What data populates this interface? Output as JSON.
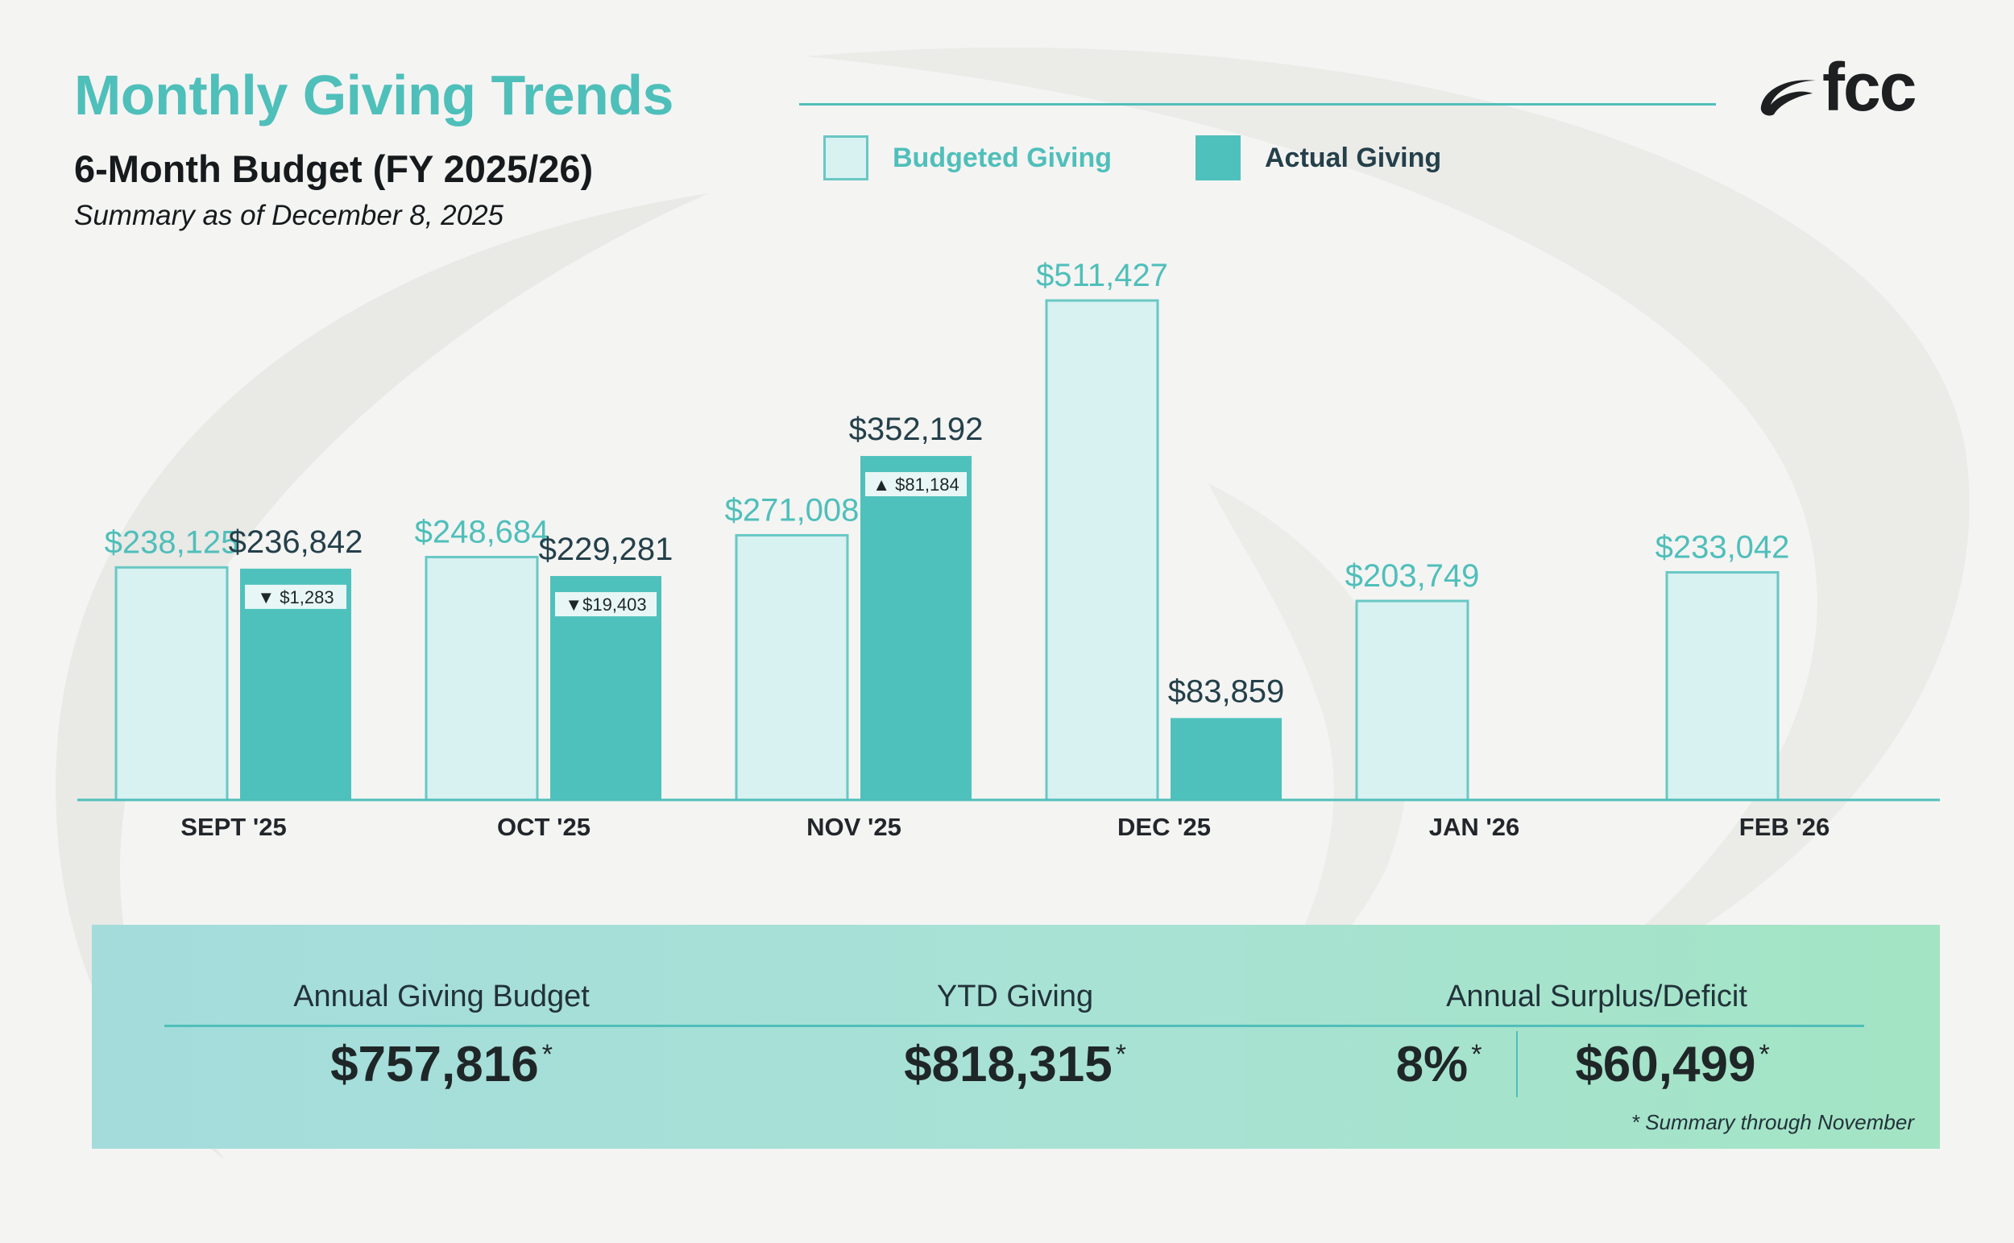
{
  "header": {
    "title": "Monthly Giving Trends",
    "subtitle": "6-Month Budget (FY 2025/26)",
    "as_of": "Summary as of December 8, 2025"
  },
  "logo": {
    "text": "fcc"
  },
  "legend": {
    "budget_label": "Budgeted Giving",
    "actual_label": "Actual Giving"
  },
  "colors": {
    "budget_fill": "#d8f1f1",
    "budget_stroke": "#69c8c4",
    "actual_fill": "#4fc1bc",
    "accent": "#4fbfba",
    "dark_text": "#24404a"
  },
  "chart_data": {
    "type": "bar",
    "title": "Monthly Giving Trends",
    "xlabel": "",
    "ylabel": "",
    "ylim": [
      0,
      511427
    ],
    "categories": [
      "SEPT '25",
      "OCT '25",
      "NOV '25",
      "DEC '25",
      "JAN '26",
      "FEB '26"
    ],
    "series": [
      {
        "name": "Budgeted Giving",
        "values": [
          238125,
          248684,
          271008,
          511427,
          203749,
          233042
        ],
        "labels": [
          "$238,125",
          "$248,684",
          "$271,008",
          "$511,427",
          "$203,749",
          "$233,042"
        ]
      },
      {
        "name": "Actual Giving",
        "values": [
          236842,
          229281,
          352192,
          83859,
          null,
          null
        ],
        "labels": [
          "$236,842",
          "$229,281",
          "$352,192",
          "$83,859",
          null,
          null
        ]
      }
    ],
    "variances": [
      {
        "direction": "down",
        "label": "▼ $1,283"
      },
      {
        "direction": "down",
        "label": "▼$19,403"
      },
      {
        "direction": "up",
        "label": "▲ $81,184"
      },
      null,
      null,
      null
    ],
    "grid": false,
    "legend": "top"
  },
  "summary": {
    "budget_label": "Annual Giving Budget",
    "budget_value": "$757,816",
    "ytd_label": "YTD Giving",
    "ytd_value": "$818,315",
    "surplus_label": "Annual Surplus/Deficit",
    "surplus_percent": "8%",
    "surplus_value": "$60,499",
    "asterisk": "*",
    "note": "*  Summary through November"
  }
}
